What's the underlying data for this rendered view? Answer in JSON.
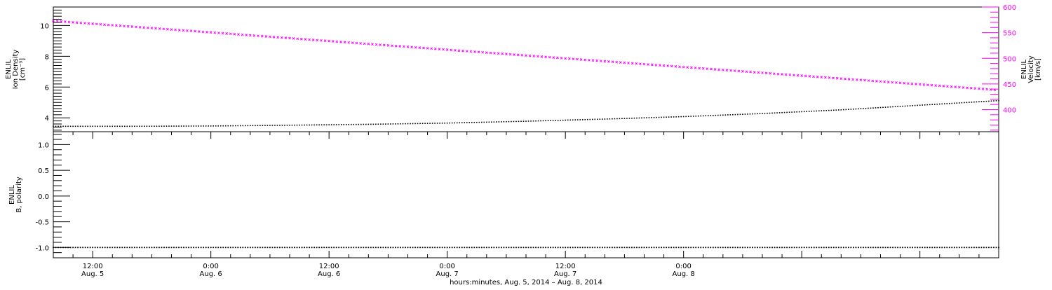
{
  "chart_data": [
    {
      "type": "scatter",
      "panel": "top",
      "x_range_hours": [
        -16,
        80
      ],
      "ylabel_left": [
        "ENLIL",
        "Ion Density",
        "[cm⁻³]"
      ],
      "ylabel_right": [
        "ENLIL",
        "Velocity",
        "[km/s]"
      ],
      "ylim_left": [
        3.1,
        11.2
      ],
      "ylim_right": [
        357,
        600
      ],
      "left_ticks": [
        "4",
        "6",
        "8",
        "10"
      ],
      "right_ticks": [
        "400",
        "450",
        "500",
        "550",
        "600"
      ],
      "series": [
        {
          "axis": "left",
          "color": "#000000",
          "x_hours": [
            -16,
            -8,
            0,
            8,
            16,
            24,
            32,
            40,
            48,
            56,
            64,
            72,
            80
          ],
          "values": [
            3.45,
            3.45,
            3.47,
            3.52,
            3.58,
            3.66,
            3.78,
            3.92,
            4.08,
            4.28,
            4.52,
            4.82,
            5.12
          ]
        },
        {
          "axis": "right",
          "color": "#ff00ff",
          "x_hours": [
            -16,
            80
          ],
          "values": [
            573,
            438
          ]
        }
      ]
    },
    {
      "type": "scatter",
      "panel": "bottom",
      "ylabel_left": [
        "ENLIL",
        "B, polarity"
      ],
      "ylim": [
        -1.2,
        1.25
      ],
      "left_ticks": [
        "-1.0",
        "-0.5",
        "0.0",
        "0.5",
        "1.0"
      ],
      "series": [
        {
          "color": "#000000",
          "x_hours": [
            -16,
            80
          ],
          "values": [
            -1.0,
            -1.0
          ]
        }
      ]
    }
  ],
  "x_axis": {
    "major_ticks": [
      {
        "hour": -12,
        "time": "12:00",
        "date": "Aug. 5"
      },
      {
        "hour": 0,
        "time": "0:00",
        "date": "Aug. 6"
      },
      {
        "hour": 12,
        "time": "12:00",
        "date": "Aug. 6"
      },
      {
        "hour": 24,
        "time": "0:00",
        "date": "Aug. 7"
      },
      {
        "hour": 36,
        "time": "12:00",
        "date": "Aug. 7"
      },
      {
        "hour": 48,
        "time": "0:00",
        "date": "Aug. 8"
      }
    ],
    "xlabel": "hours:minutes, Aug.  5, 2014 – Aug.  8, 2014"
  },
  "colors": {
    "density": "#000000",
    "velocity": "#ff00ff",
    "polarity": "#000000"
  }
}
